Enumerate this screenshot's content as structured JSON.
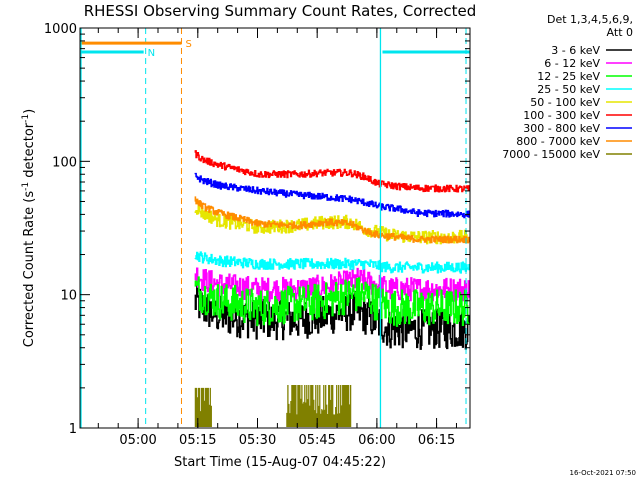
{
  "window": {
    "title": "RHESSI Observing Summary Count Rates, Corrected"
  },
  "chart_data": {
    "type": "line",
    "title": "RHESSI Observing Summary Count Rates, Corrected",
    "xlabel": "Start Time (15-Aug-07 04:45:22)",
    "ylabel": "Corrected Count Rate (s⁻¹ detector⁻¹)",
    "ylabel_parts": {
      "base": "Corrected Count Rate (s",
      "exp1": "-1",
      "mid": " detector",
      "exp2": "-1",
      "end": ")"
    },
    "y_scale": "log",
    "ylim": [
      1,
      1000
    ],
    "xlim_minutes": [
      0,
      98
    ],
    "x_ticks": [
      {
        "label": "05:00",
        "minute": 14.6
      },
      {
        "label": "05:15",
        "minute": 29.6
      },
      {
        "label": "05:30",
        "minute": 44.6
      },
      {
        "label": "05:45",
        "minute": 59.6
      },
      {
        "label": "06:00",
        "minute": 74.6
      },
      {
        "label": "06:15",
        "minute": 89.6
      }
    ],
    "y_ticks": [
      {
        "label": "1",
        "value": 1
      },
      {
        "label": "10",
        "value": 10
      },
      {
        "label": "100",
        "value": 100
      },
      {
        "label": "1000",
        "value": 1000
      }
    ],
    "legend": {
      "placement": "right",
      "header": [
        "Det 1,3,4,5,6,9,",
        "Att 0"
      ],
      "entries": [
        {
          "label": "3 - 6 keV",
          "color": "#000000"
        },
        {
          "label": "6 - 12 keV",
          "color": "#ff00ff"
        },
        {
          "label": "12 - 25 keV",
          "color": "#00ff00"
        },
        {
          "label": "25 - 50 keV",
          "color": "#00ffff"
        },
        {
          "label": "50 - 100 keV",
          "color": "#e6e600"
        },
        {
          "label": "100 - 300 keV",
          "color": "#ff0000"
        },
        {
          "label": "300 - 800 keV",
          "color": "#0000ff"
        },
        {
          "label": "800 - 7000 keV",
          "color": "#ff8c00"
        },
        {
          "label": "7000 - 15000 keV",
          "color": "#808000"
        }
      ]
    },
    "series": [
      {
        "name": "3 - 6 keV",
        "color": "#000000",
        "noise": 0.3,
        "x": [
          29,
          31,
          35,
          45,
          55,
          62,
          68,
          70,
          72,
          74,
          78,
          85,
          98
        ],
        "y": [
          9,
          8,
          7,
          6.5,
          6.5,
          7,
          7.5,
          7.5,
          7,
          6.5,
          5.5,
          5.5,
          5.5
        ]
      },
      {
        "name": "6 - 12 keV",
        "color": "#ff00ff",
        "noise": 0.18,
        "x": [
          29,
          31,
          35,
          45,
          55,
          62,
          68,
          70,
          72,
          74,
          78,
          85,
          98
        ],
        "y": [
          14.5,
          13,
          12,
          11,
          11,
          11.5,
          12.5,
          13,
          12.5,
          12,
          11,
          11,
          11
        ]
      },
      {
        "name": "12 - 25 keV",
        "color": "#00ff00",
        "noise": 0.28,
        "x": [
          29,
          31,
          35,
          45,
          55,
          62,
          68,
          70,
          72,
          74,
          78,
          85,
          98
        ],
        "y": [
          11,
          10,
          9,
          8,
          8.5,
          9,
          10,
          10,
          10,
          9,
          8,
          8,
          8
        ]
      },
      {
        "name": "25 - 50 keV",
        "color": "#00ffff",
        "noise": 0.08,
        "x": [
          29,
          31,
          35,
          45,
          55,
          62,
          68,
          72,
          78,
          85,
          98
        ],
        "y": [
          20,
          19,
          18,
          17,
          17,
          17,
          17,
          17,
          16,
          16,
          16
        ]
      },
      {
        "name": "50 - 100 keV",
        "color": "#e6e600",
        "noise": 0.1,
        "x": [
          29,
          31,
          35,
          45,
          55,
          62,
          68,
          72,
          78,
          85,
          98
        ],
        "y": [
          46,
          41,
          36,
          32,
          33,
          35,
          35,
          31,
          28,
          27,
          27
        ]
      },
      {
        "name": "100 - 300 keV",
        "color": "#ff0000",
        "noise": 0.05,
        "x": [
          29,
          31,
          35,
          45,
          55,
          62,
          68,
          72,
          75,
          80,
          85,
          98
        ],
        "y": [
          115,
          103,
          94,
          80,
          80,
          82,
          82,
          76,
          68,
          65,
          63,
          62
        ]
      },
      {
        "name": "300 - 800 keV",
        "color": "#0000ff",
        "noise": 0.05,
        "x": [
          29,
          31,
          35,
          45,
          55,
          62,
          68,
          72,
          75,
          80,
          85,
          98
        ],
        "y": [
          78,
          72,
          66,
          60,
          56,
          54,
          52,
          49,
          46,
          44,
          41,
          40
        ]
      },
      {
        "name": "800 - 7000 keV",
        "color": "#ff8c00",
        "noise": 0.05,
        "x": [
          29,
          31,
          35,
          45,
          55,
          62,
          68,
          72,
          75,
          80,
          85,
          98
        ],
        "y": [
          52,
          46,
          41,
          34,
          33,
          35,
          34,
          30,
          28,
          27,
          26,
          26
        ]
      },
      {
        "name": "7000 - 15000 keV",
        "color": "#808000",
        "x": [
          29,
          33,
          52,
          68
        ],
        "y": [
          2.0,
          2.0,
          2.1,
          2.1
        ],
        "spans": [
          [
            29,
            33
          ],
          [
            52,
            68
          ]
        ]
      }
    ],
    "flags": [
      {
        "label": "N",
        "color": "#00e5ee",
        "level": 660,
        "spans": [
          [
            0,
            16
          ],
          [
            76,
            98
          ]
        ],
        "dashed_at": [
          16.5,
          97
        ],
        "solid_at": [
          75.5
        ]
      },
      {
        "label": "S",
        "color": "#ff8c00",
        "level": 770,
        "spans": [
          [
            0,
            25.5
          ]
        ],
        "dashed_at": [
          25.5
        ],
        "solid_at": []
      }
    ]
  },
  "footer": {
    "timestamp": "16-Oct-2021 07:50"
  }
}
